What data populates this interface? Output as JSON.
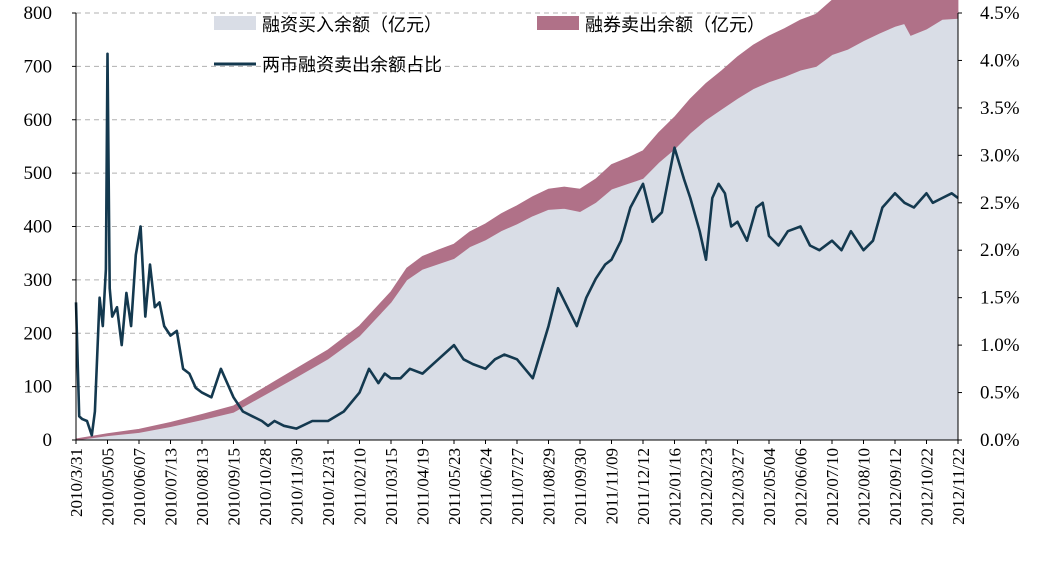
{
  "chart_data": {
    "type": "area",
    "title": "",
    "xlabel": "",
    "ylabel": "",
    "ylim": [
      0,
      800
    ],
    "y_ticks": [
      0,
      100,
      200,
      300,
      400,
      500,
      600,
      700,
      800
    ],
    "y2lim": [
      0,
      4.5
    ],
    "y2_ticks": [
      "0.0%",
      "0.5%",
      "1.0%",
      "1.5%",
      "2.0%",
      "2.5%",
      "3.0%",
      "3.5%",
      "4.0%",
      "4.5%"
    ],
    "grid": true,
    "x_categories": [
      "2010/3/31",
      "2010/05/05",
      "2010/06/07",
      "2010/07/13",
      "2010/08/13",
      "2010/09/15",
      "2010/10/28",
      "2010/11/30",
      "2010/12/31",
      "2011/02/10",
      "2011/03/15",
      "2011/04/19",
      "2011/05/23",
      "2011/06/24",
      "2011/07/27",
      "2011/08/29",
      "2011/09/30",
      "2011/11/09",
      "2011/12/12",
      "2012/01/16",
      "2012/02/23",
      "2012/03/27",
      "2012/05/04",
      "2012/06/06",
      "2012/07/10",
      "2012/08/10",
      "2012/09/12",
      "2012/10/22",
      "2012/11/22"
    ],
    "legend": {
      "placement": "top",
      "items": [
        {
          "label": "融资买入余额（亿元）",
          "color": "#d9dde6",
          "kind": "area"
        },
        {
          "label": "融券卖出余额（亿元）",
          "color": "#b07188",
          "kind": "area"
        },
        {
          "label": "两市融资卖出余额占比",
          "color": "#14394f",
          "kind": "line"
        }
      ]
    },
    "series": [
      {
        "name": "融资买入余额（亿元）",
        "axis": "left",
        "color": "#d9dde6",
        "x": [
          0,
          1,
          2,
          3,
          4,
          5,
          6,
          7,
          8,
          9,
          10,
          10.5,
          11,
          11.5,
          12,
          12.5,
          13,
          13.5,
          14,
          14.5,
          15,
          15.5,
          16,
          16.5,
          17,
          17.5,
          18,
          18.5,
          19,
          19.5,
          20,
          20.5,
          21,
          21.5,
          22,
          22.5,
          23,
          23.5,
          24,
          24.5,
          25,
          25.5,
          26,
          26.3,
          26.5,
          27,
          27.5,
          28
        ],
        "values": [
          0,
          8,
          14,
          25,
          38,
          52,
          85,
          118,
          152,
          195,
          258,
          300,
          320,
          330,
          340,
          362,
          375,
          392,
          405,
          420,
          432,
          434,
          428,
          445,
          470,
          480,
          490,
          520,
          545,
          575,
          600,
          620,
          640,
          658,
          671,
          681,
          693,
          700,
          722,
          732,
          748,
          762,
          775,
          780,
          758,
          770,
          788,
          790
        ]
      },
      {
        "name": "融券卖出余额（亿元）",
        "axis": "left",
        "color": "#b07188",
        "x": [
          0,
          1,
          2,
          3,
          4,
          5,
          6,
          7,
          8,
          9,
          10,
          10.5,
          11,
          11.5,
          12,
          12.5,
          13,
          13.5,
          14,
          14.5,
          15,
          15.5,
          16,
          16.5,
          17,
          17.5,
          18,
          18.5,
          19,
          19.5,
          20,
          20.5,
          21,
          21.5,
          22,
          22.5,
          23,
          23.5,
          24,
          24.5,
          25,
          25.5,
          26,
          26.3,
          26.5,
          27,
          27.5,
          28
        ],
        "values": [
          2,
          4,
          6,
          8,
          10,
          12,
          14,
          16,
          17,
          19,
          20,
          22,
          24,
          26,
          27,
          28,
          30,
          32,
          34,
          36,
          38,
          40,
          42,
          44,
          46,
          48,
          52,
          56,
          60,
          64,
          68,
          72,
          78,
          82,
          86,
          90,
          94,
          98,
          102,
          106,
          110,
          112,
          112,
          110,
          108,
          111,
          114,
          116
        ]
      },
      {
        "name": "两市融资卖出余额占比",
        "axis": "right",
        "color": "#14394f",
        "x": [
          0,
          0.1,
          0.2,
          0.35,
          0.5,
          0.6,
          0.75,
          0.85,
          0.95,
          1.0,
          1.07,
          1.15,
          1.3,
          1.45,
          1.6,
          1.75,
          1.9,
          2.05,
          2.2,
          2.35,
          2.5,
          2.65,
          2.8,
          3.0,
          3.2,
          3.4,
          3.6,
          3.8,
          4.0,
          4.3,
          4.6,
          5.0,
          5.3,
          5.6,
          5.9,
          6.1,
          6.3,
          6.6,
          7.0,
          7.5,
          8.0,
          8.5,
          9.0,
          9.3,
          9.6,
          9.8,
          10.0,
          10.3,
          10.6,
          11.0,
          11.5,
          12.0,
          12.3,
          12.6,
          13.0,
          13.3,
          13.6,
          14.0,
          14.5,
          15.0,
          15.3,
          15.6,
          15.9,
          16.2,
          16.5,
          16.8,
          17.0,
          17.3,
          17.6,
          18.0,
          18.3,
          18.6,
          19.0,
          19.3,
          19.5,
          19.8,
          20.0,
          20.2,
          20.4,
          20.6,
          20.8,
          21.0,
          21.3,
          21.6,
          21.8,
          22.0,
          22.3,
          22.6,
          23.0,
          23.3,
          23.6,
          24.0,
          24.3,
          24.6,
          25.0,
          25.3,
          25.6,
          26.0,
          26.3,
          26.6,
          27.0,
          27.2,
          27.5,
          27.8,
          28.0
        ],
        "values": [
          1.45,
          0.25,
          0.22,
          0.2,
          0.05,
          0.3,
          1.5,
          1.2,
          1.8,
          4.07,
          1.6,
          1.3,
          1.4,
          1.0,
          1.55,
          1.2,
          1.95,
          2.25,
          1.3,
          1.85,
          1.4,
          1.45,
          1.2,
          1.1,
          1.15,
          0.75,
          0.7,
          0.55,
          0.5,
          0.45,
          0.75,
          0.45,
          0.3,
          0.25,
          0.2,
          0.15,
          0.2,
          0.15,
          0.12,
          0.2,
          0.2,
          0.3,
          0.5,
          0.75,
          0.6,
          0.7,
          0.65,
          0.65,
          0.75,
          0.7,
          0.85,
          1.0,
          0.85,
          0.8,
          0.75,
          0.85,
          0.9,
          0.85,
          0.65,
          1.2,
          1.6,
          1.4,
          1.2,
          1.5,
          1.7,
          1.85,
          1.9,
          2.1,
          2.45,
          2.7,
          2.3,
          2.4,
          3.08,
          2.75,
          2.55,
          2.2,
          1.9,
          2.55,
          2.7,
          2.6,
          2.25,
          2.3,
          2.1,
          2.45,
          2.5,
          2.15,
          2.05,
          2.2,
          2.25,
          2.05,
          2.0,
          2.1,
          2.0,
          2.2,
          2.0,
          2.1,
          2.45,
          2.6,
          2.5,
          2.45,
          2.6,
          2.5,
          2.55,
          2.6,
          2.55
        ]
      }
    ]
  }
}
